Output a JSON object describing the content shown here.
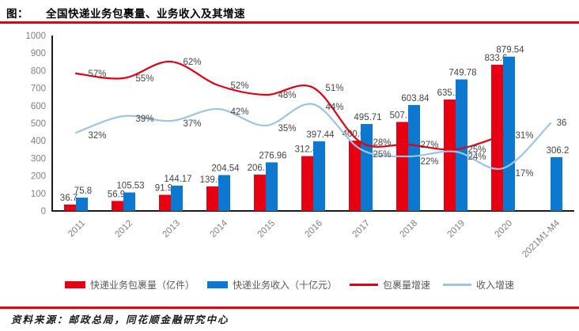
{
  "header": {
    "prefix": "图：",
    "title": "全国快递业务包裹量、业务收入及其增速"
  },
  "footer": {
    "text": "资料来源：邮政总局，同花顺金融研究中心"
  },
  "colors": {
    "accent_red": "#e60012",
    "bar_blue": "#0d78cf",
    "line_light_blue": "#9dc3e6",
    "axis_black": "#1a1a1a",
    "tick_gray": "#7f7f7f"
  },
  "chart_data": {
    "type": "combo",
    "title": "全国快递业务包裹量、业务收入及其增速",
    "categories": [
      "2011",
      "2012",
      "2013",
      "2014",
      "2015",
      "2016",
      "2017",
      "2018",
      "2019",
      "2020",
      "2021M1-M4"
    ],
    "y_axis": {
      "min": 0,
      "max": 1000,
      "step": 100
    },
    "percent_axis_visible": false,
    "grid": false,
    "legend_position": "bottom",
    "series": [
      {
        "name": "快递业务包裹量（亿件）",
        "type": "bar",
        "color": "#e60012",
        "values": [
          36.7,
          56.9,
          91.9,
          139.6,
          206.7,
          312.8,
          400.6,
          507.1,
          635.2,
          833.6,
          null
        ]
      },
      {
        "name": "快递业务收入（十亿元）",
        "type": "bar",
        "color": "#0d78cf",
        "values": [
          75.8,
          105.53,
          144.17,
          204.54,
          276.96,
          397.44,
          495.71,
          603.84,
          749.78,
          879.54,
          306.2
        ]
      },
      {
        "name": "包裹量增速",
        "type": "line",
        "color": "#e60012",
        "values_percent": [
          57,
          55,
          62,
          52,
          48,
          51,
          28,
          27,
          25,
          31,
          null
        ],
        "labels": [
          "57%",
          "55%",
          "62%",
          "52%",
          "48%",
          "51%",
          "28%",
          "27%",
          "25%",
          "31%",
          ""
        ]
      },
      {
        "name": "收入增速",
        "type": "line",
        "color": "#9dc3e6",
        "values_percent": [
          32,
          39,
          37,
          42,
          35,
          44,
          25,
          22,
          24,
          17,
          36
        ],
        "labels": [
          "32%",
          "39%",
          "37%",
          "42%",
          "35%",
          "44%",
          "25%",
          "22%",
          "24%",
          "17%",
          "36"
        ]
      }
    ]
  }
}
